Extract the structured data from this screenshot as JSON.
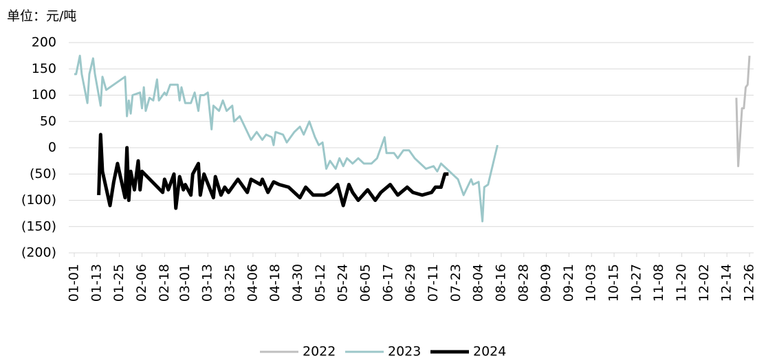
{
  "chart_data": {
    "type": "line",
    "ylabel": "单位：元/吨",
    "ylim": [
      -200,
      200
    ],
    "yticks": [
      {
        "value": -200,
        "label": "(200)"
      },
      {
        "value": -150,
        "label": "(150)"
      },
      {
        "value": -100,
        "label": "(100)"
      },
      {
        "value": -50,
        "label": "(50)"
      },
      0,
      50,
      100,
      150,
      200
    ],
    "negative_tick_color": "#e00000",
    "grid": true,
    "xlim": [
      "01-01",
      "12-26"
    ],
    "xticks": [
      "01-01",
      "01-13",
      "01-25",
      "02-06",
      "02-18",
      "03-01",
      "03-13",
      "03-25",
      "04-06",
      "04-18",
      "04-30",
      "05-12",
      "05-24",
      "06-05",
      "06-17",
      "06-29",
      "07-11",
      "07-23",
      "08-04",
      "08-16",
      "08-28",
      "09-09",
      "09-21",
      "10-03",
      "10-15",
      "10-27",
      "11-08",
      "11-20",
      "12-02",
      "12-14",
      "12-26"
    ],
    "legend": "bottom",
    "series": [
      {
        "name": "2022",
        "color": "#bfbfbf",
        "width": 3,
        "x": [
          "12-19",
          "12-20",
          "12-22",
          "12-23",
          "12-24",
          "12-25",
          "12-26"
        ],
        "values": [
          95,
          -35,
          75,
          75,
          115,
          120,
          175
        ]
      },
      {
        "name": "2023",
        "color": "#9cc7c9",
        "width": 3,
        "x": [
          "01-01",
          "01-02",
          "01-04",
          "01-05",
          "01-08",
          "01-09",
          "01-11",
          "01-12",
          "01-15",
          "01-16",
          "01-18",
          "01-28",
          "01-29",
          "01-30",
          "01-31",
          "02-01",
          "02-05",
          "02-06",
          "02-07",
          "02-08",
          "02-10",
          "02-12",
          "02-14",
          "02-15",
          "02-18",
          "02-19",
          "02-21",
          "02-25",
          "02-26",
          "02-27",
          "03-01",
          "03-04",
          "03-06",
          "03-08",
          "03-09",
          "03-11",
          "03-13",
          "03-15",
          "03-16",
          "03-19",
          "03-21",
          "03-23",
          "03-26",
          "03-27",
          "03-30",
          "04-01",
          "04-05",
          "04-08",
          "04-11",
          "04-13",
          "04-16",
          "04-17",
          "04-18",
          "04-22",
          "04-24",
          "04-28",
          "05-01",
          "05-03",
          "05-06",
          "05-09",
          "05-11",
          "05-13",
          "05-15",
          "05-17",
          "05-20",
          "05-22",
          "05-24",
          "05-26",
          "05-29",
          "06-01",
          "06-04",
          "06-08",
          "06-11",
          "06-15",
          "06-16",
          "06-20",
          "06-22",
          "06-25",
          "06-28",
          "07-01",
          "07-04",
          "07-07",
          "07-11",
          "07-13",
          "07-15",
          "07-18",
          "07-24",
          "07-27",
          "07-31",
          "08-01",
          "08-04",
          "08-06",
          "08-07",
          "08-09",
          "08-14"
        ],
        "values": [
          140,
          140,
          175,
          140,
          85,
          140,
          170,
          140,
          80,
          135,
          110,
          135,
          60,
          90,
          65,
          100,
          105,
          75,
          115,
          70,
          95,
          90,
          130,
          90,
          105,
          100,
          120,
          120,
          90,
          115,
          85,
          85,
          105,
          70,
          100,
          100,
          105,
          35,
          80,
          70,
          90,
          70,
          80,
          50,
          60,
          45,
          15,
          30,
          15,
          25,
          20,
          5,
          30,
          25,
          10,
          30,
          40,
          25,
          50,
          20,
          5,
          10,
          -40,
          -25,
          -40,
          -20,
          -35,
          -20,
          -30,
          -20,
          -30,
          -30,
          -20,
          20,
          -10,
          -10,
          -20,
          -5,
          -5,
          -20,
          -30,
          -40,
          -35,
          -45,
          -30,
          -40,
          -60,
          -90,
          -60,
          -70,
          -65,
          -140,
          -75,
          -70,
          5
        ]
      },
      {
        "name": "2024",
        "color": "#000000",
        "width": 5,
        "x": [
          "01-14",
          "01-15",
          "01-16",
          "01-20",
          "01-22",
          "01-24",
          "01-28",
          "01-29",
          "01-30",
          "01-31",
          "02-02",
          "02-04",
          "02-05",
          "02-06",
          "02-17",
          "02-18",
          "02-20",
          "02-23",
          "02-24",
          "02-26",
          "02-28",
          "03-01",
          "03-04",
          "03-05",
          "03-08",
          "03-09",
          "03-11",
          "03-16",
          "03-17",
          "03-20",
          "03-22",
          "03-24",
          "03-29",
          "04-03",
          "04-05",
          "04-10",
          "04-11",
          "04-14",
          "04-17",
          "04-20",
          "04-25",
          "05-01",
          "05-04",
          "05-08",
          "05-14",
          "05-17",
          "05-21",
          "05-24",
          "05-27",
          "05-29",
          "06-01",
          "06-06",
          "06-10",
          "06-13",
          "06-18",
          "06-22",
          "06-27",
          "06-30",
          "07-05",
          "07-10",
          "07-12",
          "07-15",
          "07-17",
          "07-19"
        ],
        "values": [
          -90,
          25,
          -45,
          -110,
          -65,
          -30,
          -95,
          0,
          -100,
          -45,
          -80,
          -25,
          -80,
          -45,
          -85,
          -60,
          -80,
          -50,
          -115,
          -55,
          -80,
          -70,
          -90,
          -50,
          -30,
          -90,
          -50,
          -95,
          -55,
          -90,
          -75,
          -85,
          -60,
          -85,
          -60,
          -70,
          -60,
          -85,
          -65,
          -70,
          -75,
          -95,
          -75,
          -90,
          -90,
          -85,
          -70,
          -110,
          -70,
          -85,
          -100,
          -80,
          -100,
          -85,
          -70,
          -90,
          -75,
          -85,
          -90,
          -85,
          -75,
          -75,
          -50,
          -50
        ]
      }
    ]
  }
}
